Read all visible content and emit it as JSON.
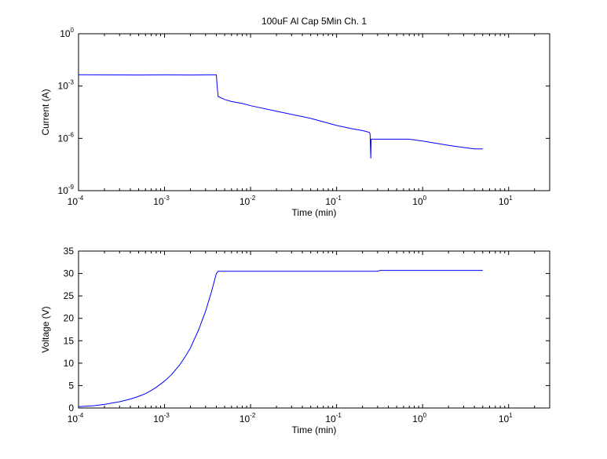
{
  "chart_data": [
    {
      "type": "line",
      "title": "100uF Al Cap 5Min Ch. 1",
      "xlabel": "Time (min)",
      "ylabel": "Current (A)",
      "xscale": "log",
      "yscale": "log",
      "xlim": [
        0.0001,
        30
      ],
      "ylim": [
        1e-09,
        1
      ],
      "grid": false,
      "xticks": [
        {
          "base": "10",
          "exp": "-4",
          "value": 0.0001
        },
        {
          "base": "10",
          "exp": "-3",
          "value": 0.001
        },
        {
          "base": "10",
          "exp": "-2",
          "value": 0.01
        },
        {
          "base": "10",
          "exp": "-1",
          "value": 0.1
        },
        {
          "base": "10",
          "exp": "0",
          "value": 1
        },
        {
          "base": "10",
          "exp": "1",
          "value": 10
        }
      ],
      "yticks": [
        {
          "base": "10",
          "exp": "0",
          "value": 1
        },
        {
          "base": "10",
          "exp": "-3",
          "value": 0.001
        },
        {
          "base": "10",
          "exp": "-6",
          "value": 1e-06
        },
        {
          "base": "10",
          "exp": "-9",
          "value": 1e-09
        }
      ],
      "line_color": "#0000ff",
      "series": [
        {
          "x": [
            0.0001,
            0.0005,
            0.001,
            0.002,
            0.003,
            0.004,
            0.0041,
            0.0042,
            0.005,
            0.006,
            0.008,
            0.01,
            0.02,
            0.05,
            0.1,
            0.15,
            0.2,
            0.24,
            0.245,
            0.25,
            0.252,
            0.3,
            0.5,
            0.7,
            1.0,
            2.0,
            3.0,
            4.0,
            5.0
          ],
          "y": [
            0.0045,
            0.0043,
            0.0044,
            0.0043,
            0.0044,
            0.0044,
            0.0008,
            0.00025,
            0.00017,
            0.00013,
            0.0001,
            7.5e-05,
            3.6e-05,
            1.4e-05,
            5.5e-06,
            3.6e-06,
            2.8e-06,
            2.2e-06,
            1.8e-06,
            7e-08,
            9e-07,
            9e-07,
            9e-07,
            9e-07,
            7e-07,
            4e-07,
            3e-07,
            2.5e-07,
            2.5e-07
          ]
        }
      ]
    },
    {
      "type": "line",
      "title": "",
      "xlabel": "Time (min)",
      "ylabel": "Voltage (V)",
      "xscale": "log",
      "yscale": "linear",
      "xlim": [
        0.0001,
        30
      ],
      "ylim": [
        0,
        35
      ],
      "grid": false,
      "xticks": [
        {
          "base": "10",
          "exp": "-4",
          "value": 0.0001
        },
        {
          "base": "10",
          "exp": "-3",
          "value": 0.001
        },
        {
          "base": "10",
          "exp": "-2",
          "value": 0.01
        },
        {
          "base": "10",
          "exp": "-1",
          "value": 0.1
        },
        {
          "base": "10",
          "exp": "0",
          "value": 1
        },
        {
          "base": "10",
          "exp": "1",
          "value": 10
        }
      ],
      "yticks": [
        {
          "label": "0",
          "value": 0
        },
        {
          "label": "5",
          "value": 5
        },
        {
          "label": "10",
          "value": 10
        },
        {
          "label": "15",
          "value": 15
        },
        {
          "label": "20",
          "value": 20
        },
        {
          "label": "25",
          "value": 25
        },
        {
          "label": "30",
          "value": 30
        },
        {
          "label": "35",
          "value": 35
        }
      ],
      "line_color": "#0000ff",
      "series": [
        {
          "x": [
            0.0001,
            0.00015,
            0.0002,
            0.0003,
            0.0004,
            0.0005,
            0.0006,
            0.0007,
            0.0008,
            0.001,
            0.0012,
            0.0015,
            0.0018,
            0.002,
            0.0025,
            0.003,
            0.0035,
            0.004,
            0.0042,
            0.01,
            0.1,
            0.3,
            0.32,
            1.0,
            5.0
          ],
          "y": [
            0.3,
            0.5,
            0.8,
            1.4,
            2.0,
            2.6,
            3.2,
            3.9,
            4.6,
            6.0,
            7.4,
            9.6,
            11.9,
            13.4,
            17.5,
            21.6,
            25.8,
            30.0,
            30.5,
            30.5,
            30.5,
            30.5,
            30.7,
            30.7,
            30.7
          ]
        }
      ]
    }
  ]
}
